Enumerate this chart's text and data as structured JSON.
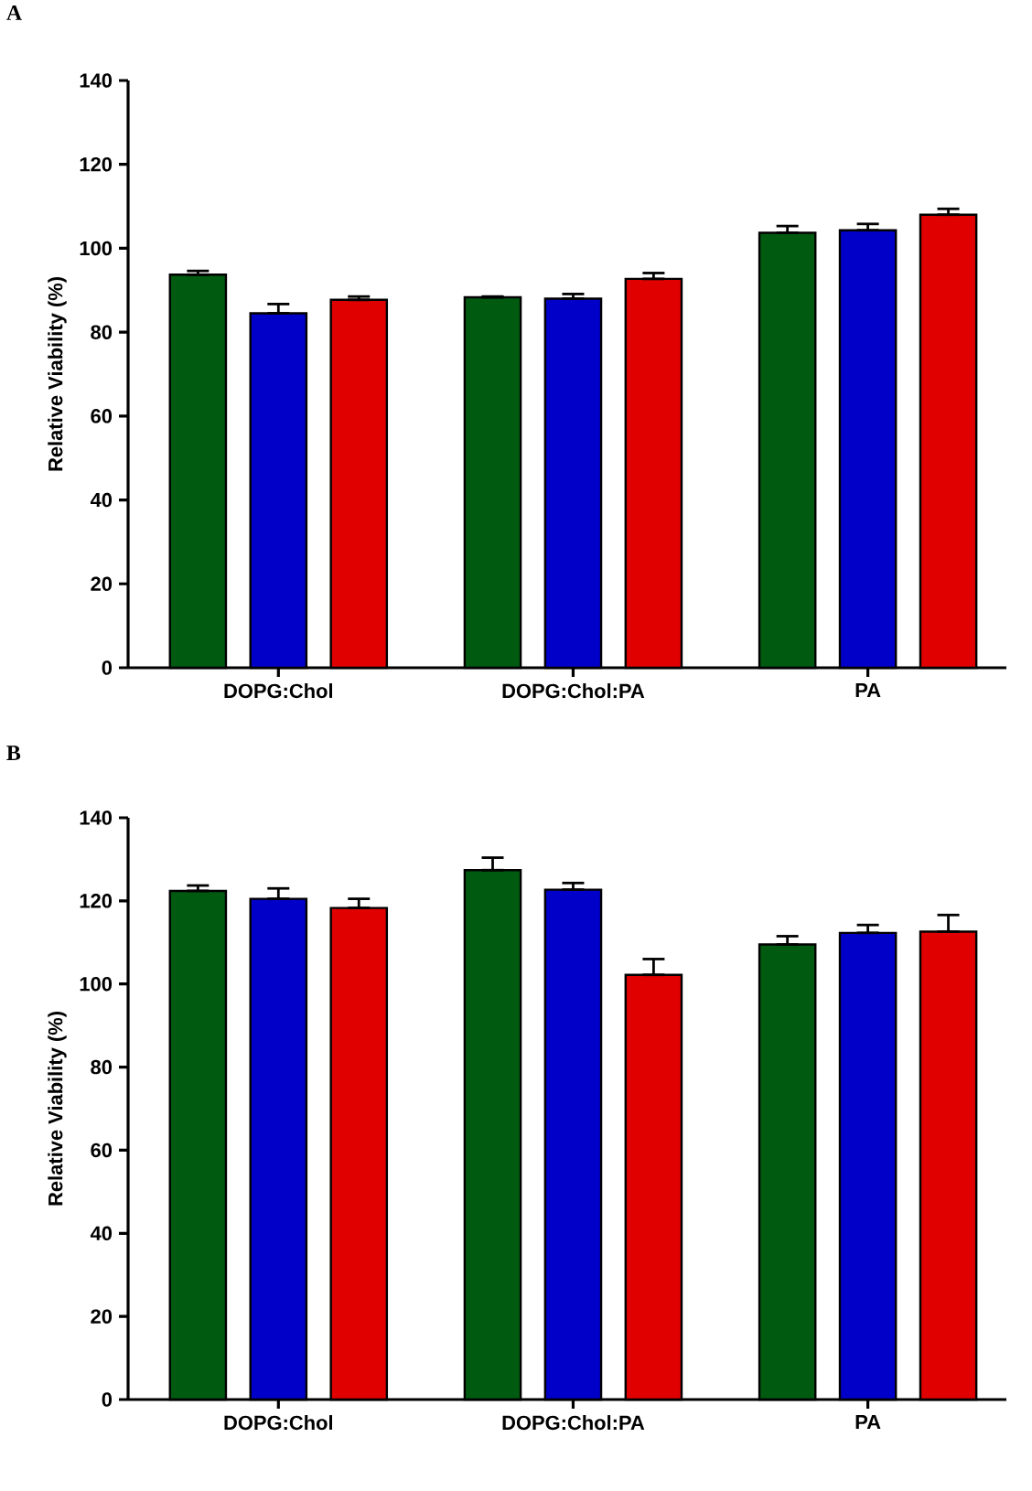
{
  "chart_data": [
    {
      "type": "bar",
      "title": "A",
      "ylabel": "Relative Viability (%)",
      "categories": [
        "DOPG:Chol",
        "DOPG:Chol:PA",
        "PA"
      ],
      "ylim": [
        0,
        140
      ],
      "yticks": [
        0,
        20,
        40,
        60,
        80,
        100,
        120,
        140
      ],
      "series": [
        {
          "color": "#005a10",
          "values": [
            93.7,
            88.3,
            103.7
          ],
          "errors": [
            [
              93.7,
              94.6
            ],
            [
              88.3,
              88.5
            ],
            [
              103.7,
              105.3
            ]
          ]
        },
        {
          "color": "#0000c8",
          "values": [
            84.5,
            88.0,
            104.3
          ],
          "errors": [
            [
              84.5,
              86.7
            ],
            [
              88.0,
              89.1
            ],
            [
              104.3,
              105.8
            ]
          ]
        },
        {
          "color": "#e00000",
          "values": [
            87.7,
            92.7,
            108.0
          ],
          "errors": [
            [
              87.7,
              88.5
            ],
            [
              92.7,
              94.1
            ],
            [
              108.0,
              109.4
            ]
          ]
        }
      ]
    },
    {
      "type": "bar",
      "title": "B",
      "ylabel": "Relative Viability (%)",
      "categories": [
        "DOPG:Chol",
        "DOPG:Chol:PA",
        "PA"
      ],
      "ylim": [
        0,
        140
      ],
      "yticks": [
        0,
        20,
        40,
        60,
        80,
        100,
        120,
        140
      ],
      "series": [
        {
          "color": "#005a10",
          "values": [
            122.4,
            127.4,
            109.5
          ],
          "errors": [
            [
              122.4,
              123.7
            ],
            [
              127.4,
              130.4
            ],
            [
              109.5,
              111.5
            ]
          ]
        },
        {
          "color": "#0000c8",
          "values": [
            120.5,
            122.7,
            112.3
          ],
          "errors": [
            [
              120.5,
              123.0
            ],
            [
              122.7,
              124.3
            ],
            [
              112.3,
              114.2
            ]
          ]
        },
        {
          "color": "#e00000",
          "values": [
            118.3,
            102.2,
            112.6
          ],
          "errors": [
            [
              118.3,
              120.5
            ],
            [
              102.2,
              106.0
            ],
            [
              112.6,
              116.6
            ]
          ]
        }
      ]
    }
  ]
}
